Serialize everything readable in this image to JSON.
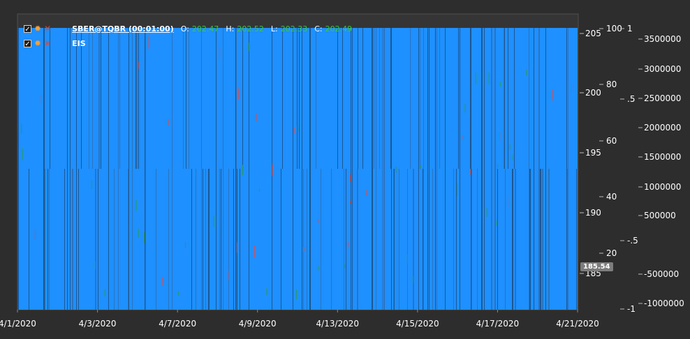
{
  "colors": {
    "background": "#2d2d2d",
    "plot_fill": "#1e90ff",
    "dark_bar": "#1b4e82",
    "up_candle": "#2e9a4e",
    "down_candle": "#e04b4b",
    "axis_text": "#ffffff",
    "ohlc_value": "#3ec43e",
    "gear_icon": "#f2a03d",
    "close_icon": "#e0472b"
  },
  "legend": {
    "rows": [
      {
        "name": "SBER@TQBR (00:01:00)",
        "icons": [
          "checkbox-checked-icon",
          "gear-icon",
          "close-icon"
        ],
        "ohlc": [
          {
            "label": "O:",
            "value": "202.47"
          },
          {
            "label": "H:",
            "value": "202.52"
          },
          {
            "label": "L:",
            "value": "202.33"
          },
          {
            "label": "C:",
            "value": "202.49"
          }
        ]
      },
      {
        "name": "EIS",
        "icons": [
          "checkbox-checked-icon",
          "gear-icon",
          "close-icon"
        ],
        "ohlc": []
      }
    ]
  },
  "current_price_label": "185.54",
  "chart_data": {
    "type": "bar",
    "title": "",
    "x": [
      "4/1/2020",
      "4/3/2020",
      "4/7/2020",
      "4/9/2020",
      "4/13/2020",
      "4/15/2020",
      "4/17/2020",
      "4/21/2020"
    ],
    "xlabel": "",
    "grid": false,
    "legend_placement": "top-left",
    "axes": [
      {
        "id": "price",
        "side": "right",
        "ticks": [
          "205",
          "200",
          "195",
          "190",
          "185"
        ],
        "range": [
          182,
          206
        ]
      },
      {
        "id": "pct",
        "side": "right",
        "ticks": [
          "100",
          "80",
          "60",
          "40",
          "20"
        ],
        "range": [
          0,
          100
        ]
      },
      {
        "id": "norm",
        "side": "right",
        "ticks": [
          "1",
          ".5",
          "-.5",
          "-1"
        ],
        "range": [
          -1,
          1
        ]
      },
      {
        "id": "volume",
        "side": "right",
        "ticks": [
          "3500000",
          "3000000",
          "2500000",
          "2000000",
          "1500000",
          "1000000",
          "500000",
          "-500000",
          "-1000000"
        ],
        "range": [
          -1000000,
          3500000
        ]
      }
    ],
    "series": [
      {
        "name": "SBER@TQBR (00:01:00)",
        "type": "candlestick",
        "last": {
          "open": 202.47,
          "high": 202.52,
          "low": 202.33,
          "close": 202.49
        },
        "current_price": 185.54
      },
      {
        "name": "EIS",
        "type": "bar"
      }
    ]
  }
}
